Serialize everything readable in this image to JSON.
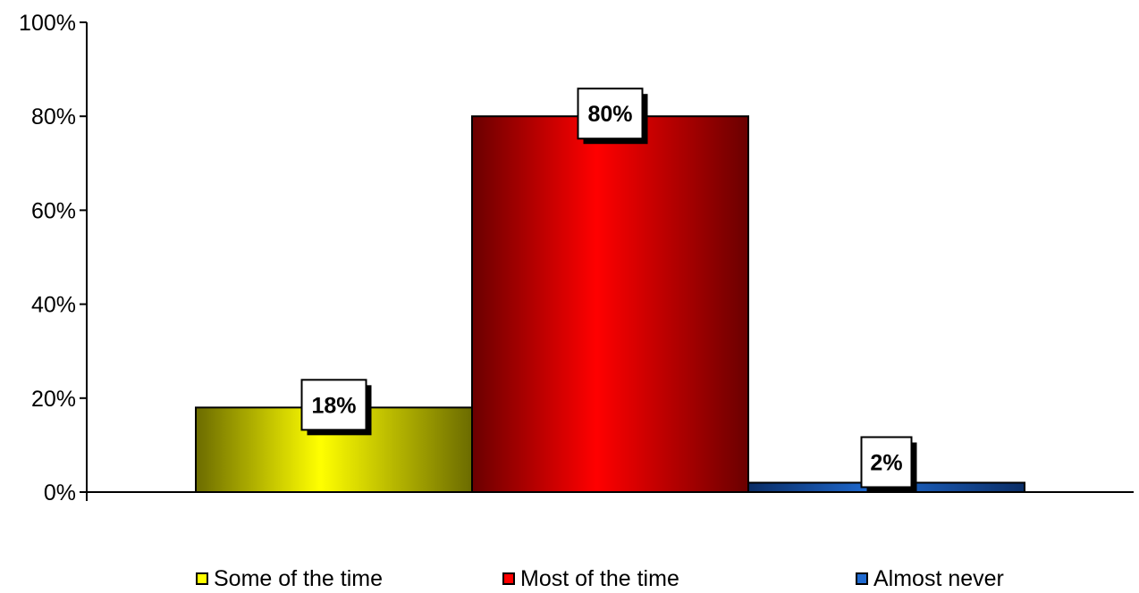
{
  "chart_data": {
    "type": "bar",
    "categories": [
      "Some of the time",
      "Most of the time",
      "Almost never"
    ],
    "values": [
      18,
      80,
      2
    ],
    "data_labels": [
      "18%",
      "80%",
      "2%"
    ],
    "ylim": [
      0,
      100
    ],
    "yticks": [
      0,
      20,
      40,
      60,
      80,
      100
    ],
    "ytick_labels": [
      "0%",
      "20%",
      "40%",
      "60%",
      "80%",
      "100%"
    ],
    "colors": [
      "#ffff00",
      "#ff0000",
      "#1f6ad0"
    ],
    "dark_colors": [
      "#6b6b00",
      "#6a0000",
      "#0a2d66"
    ],
    "grid": false,
    "legend_position": "bottom",
    "legend": [
      {
        "label": "Some of the time",
        "color": "#ffff00"
      },
      {
        "label": "Most of the time",
        "color": "#ff0000"
      },
      {
        "label": "Almost never",
        "color": "#1f6ad0"
      }
    ]
  }
}
